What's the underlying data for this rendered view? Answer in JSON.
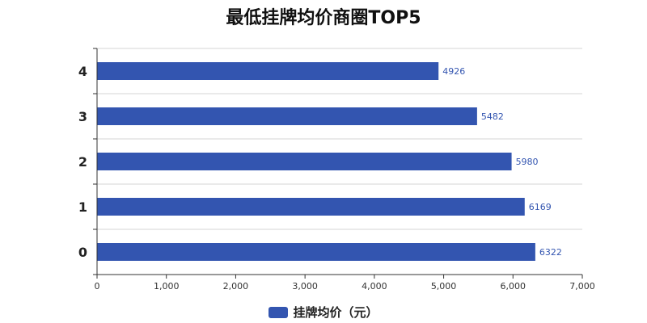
{
  "chart_data": {
    "type": "bar",
    "orientation": "horizontal",
    "title": "最低挂牌均价商圈TOP5",
    "categories": [
      "0",
      "1",
      "2",
      "3",
      "4"
    ],
    "series": [
      {
        "name": "挂牌均价（元）",
        "values": [
          6322,
          6169,
          5980,
          5482,
          4926
        ],
        "color": "#3355b0"
      }
    ],
    "xlim": [
      0,
      7000
    ],
    "x_ticks": [
      "0",
      "1,000",
      "2,000",
      "3,000",
      "4,000",
      "5,000",
      "6,000",
      "7,000"
    ],
    "grid": true,
    "legend_position": "bottom"
  }
}
